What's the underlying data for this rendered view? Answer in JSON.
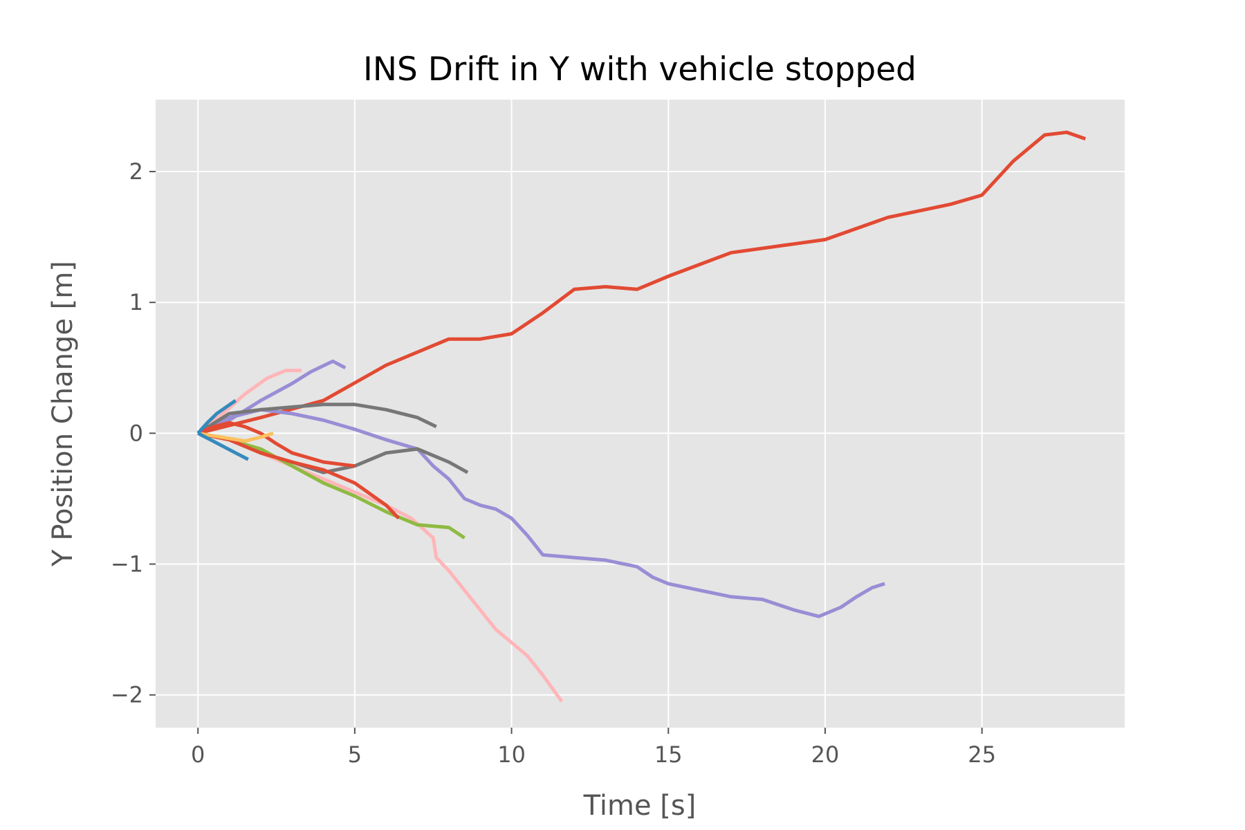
{
  "chart_data": {
    "type": "line",
    "title": "INS Drift in Y with vehicle stopped",
    "xlabel": "Time [s]",
    "ylabel": "Y Position Change [m]",
    "xlim": [
      -1.35,
      29.55
    ],
    "ylim": [
      -2.25,
      2.55
    ],
    "xticks": [
      0,
      5,
      10,
      15,
      20,
      25
    ],
    "yticks": [
      -2,
      -1,
      0,
      1,
      2
    ],
    "xtick_labels": [
      "0",
      "5",
      "10",
      "15",
      "20",
      "25"
    ],
    "ytick_labels": [
      "−2",
      "−1",
      "0",
      "1",
      "2"
    ],
    "grid": true,
    "background": "#e5e5e5",
    "series": [
      {
        "color": "#e24a33",
        "x": [
          0,
          2,
          4,
          6,
          8,
          9,
          10,
          11,
          12,
          13,
          14,
          15,
          17,
          20,
          22,
          24,
          25,
          26,
          27,
          27.7,
          28.3
        ],
        "y": [
          0,
          0.12,
          0.25,
          0.52,
          0.72,
          0.72,
          0.76,
          0.92,
          1.1,
          1.12,
          1.1,
          1.2,
          1.38,
          1.48,
          1.65,
          1.75,
          1.82,
          2.08,
          2.28,
          2.3,
          2.25
        ]
      },
      {
        "color": "#988ed5",
        "x": [
          0,
          1,
          2,
          3,
          4,
          5,
          6,
          7,
          7.5,
          8,
          8.5,
          9,
          9.5,
          10,
          10.5,
          11,
          12,
          13,
          14,
          14.5,
          15,
          16,
          17,
          18,
          19,
          19.8,
          20.5,
          21,
          21.5,
          21.9
        ],
        "y": [
          0,
          0.12,
          0.18,
          0.15,
          0.1,
          0.03,
          -0.05,
          -0.12,
          -0.25,
          -0.35,
          -0.5,
          -0.55,
          -0.58,
          -0.65,
          -0.78,
          -0.93,
          -0.95,
          -0.97,
          -1.02,
          -1.1,
          -1.15,
          -1.2,
          -1.25,
          -1.27,
          -1.35,
          -1.4,
          -1.33,
          -1.25,
          -1.18,
          -1.15
        ]
      },
      {
        "color": "#ffb5b8",
        "x": [
          0,
          1,
          2,
          3,
          4,
          5,
          6,
          6.8,
          7.5,
          7.6,
          8,
          8.5,
          9,
          9.5,
          10,
          10.5,
          11,
          11.6
        ],
        "y": [
          0,
          -0.05,
          -0.15,
          -0.25,
          -0.35,
          -0.45,
          -0.55,
          -0.65,
          -0.8,
          -0.95,
          -1.05,
          -1.2,
          -1.35,
          -1.5,
          -1.6,
          -1.7,
          -1.85,
          -2.05
        ]
      },
      {
        "color": "#ffb5b8",
        "x": [
          0,
          0.8,
          1.5,
          2.2,
          2.8,
          3.3
        ],
        "y": [
          0,
          0.15,
          0.3,
          0.42,
          0.48,
          0.48
        ]
      },
      {
        "color": "#988ed5",
        "x": [
          0,
          1,
          2,
          3,
          3.6,
          4.3,
          4.7
        ],
        "y": [
          0,
          0.1,
          0.25,
          0.38,
          0.47,
          0.55,
          0.5
        ]
      },
      {
        "color": "#777777",
        "x": [
          0,
          1,
          2,
          3,
          4,
          5,
          6,
          7,
          7.6
        ],
        "y": [
          0,
          0.15,
          0.18,
          0.2,
          0.22,
          0.22,
          0.18,
          0.12,
          0.05
        ]
      },
      {
        "color": "#777777",
        "x": [
          0,
          1,
          2,
          3,
          4,
          5,
          6,
          7,
          8,
          8.6
        ],
        "y": [
          0,
          -0.05,
          -0.15,
          -0.22,
          -0.3,
          -0.25,
          -0.15,
          -0.12,
          -0.22,
          -0.3
        ]
      },
      {
        "color": "#8eba42",
        "x": [
          0,
          1,
          2,
          3,
          4,
          5,
          6,
          7,
          8,
          8.5
        ],
        "y": [
          0,
          -0.05,
          -0.12,
          -0.25,
          -0.38,
          -0.48,
          -0.6,
          -0.7,
          -0.72,
          -0.8
        ]
      },
      {
        "color": "#e24a33",
        "x": [
          0,
          1,
          2,
          3,
          4,
          5,
          6,
          6.4
        ],
        "y": [
          0,
          -0.05,
          -0.15,
          -0.22,
          -0.28,
          -0.38,
          -0.55,
          -0.65
        ]
      },
      {
        "color": "#e24a33",
        "x": [
          0,
          0.5,
          1,
          1.5,
          2,
          2.5,
          3,
          4,
          5
        ],
        "y": [
          0,
          0.05,
          0.08,
          0.05,
          0,
          -0.08,
          -0.15,
          -0.22,
          -0.25
        ]
      },
      {
        "color": "#fbc15e",
        "x": [
          0,
          0.5,
          1,
          1.5,
          2,
          2.4
        ],
        "y": [
          0,
          -0.02,
          -0.04,
          -0.06,
          -0.03,
          0
        ]
      },
      {
        "color": "#348abd",
        "x": [
          0,
          0.3,
          0.6,
          0.9,
          1.2
        ],
        "y": [
          0,
          0.08,
          0.15,
          0.2,
          0.25
        ]
      },
      {
        "color": "#348abd",
        "x": [
          0,
          0.4,
          0.8,
          1.2,
          1.6
        ],
        "y": [
          0,
          -0.05,
          -0.1,
          -0.15,
          -0.2
        ]
      }
    ]
  }
}
